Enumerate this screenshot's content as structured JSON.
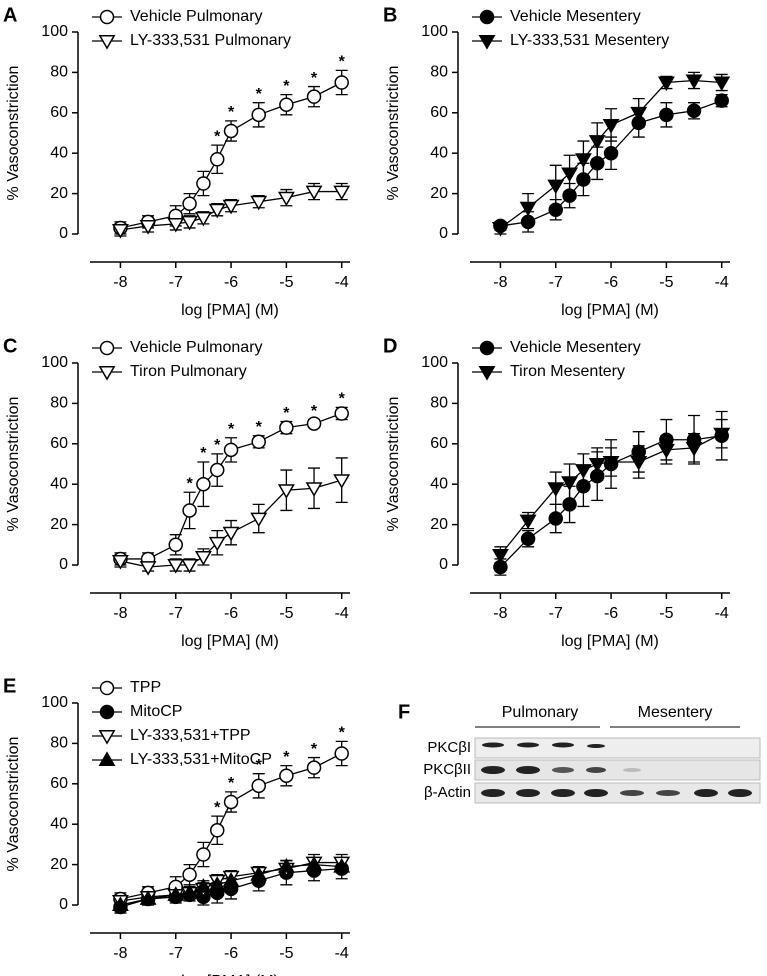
{
  "chart_data": [
    {
      "type": "line",
      "panel": "A",
      "xlabel": "log [PMA] (M)",
      "ylabel": "% Vasoconstriction",
      "x": [
        -8,
        -7.5,
        -7,
        -6.75,
        -6.5,
        -6.25,
        -6,
        -5.5,
        -5,
        -4.5,
        -4
      ],
      "xlim": [
        -8.55,
        -3.85
      ],
      "xticks": [
        -8,
        -7,
        -6,
        -5,
        -4
      ],
      "ylim": [
        0,
        100
      ],
      "yticks": [
        0,
        20,
        40,
        60,
        80,
        100
      ],
      "series": [
        {
          "name": "Vehicle Pulmonary",
          "color": "#000000",
          "marker": "circle",
          "filled": false,
          "values": [
            3,
            6,
            9,
            15,
            25,
            37,
            51,
            59,
            64,
            68,
            75
          ],
          "errors": [
            3,
            3,
            5,
            5,
            6,
            7,
            5,
            6,
            5,
            5,
            6
          ]
        },
        {
          "name": "LY-333,531 Pulmonary",
          "color": "#000000",
          "marker": "triangle-down",
          "filled": false,
          "values": [
            2,
            4,
            5,
            6,
            8,
            12,
            14,
            16,
            18,
            21,
            21
          ],
          "errors": [
            3,
            3,
            3,
            3,
            3,
            3,
            3,
            3,
            4,
            4,
            4
          ]
        }
      ],
      "significance_x": [
        -6.25,
        -6,
        -5.5,
        -5,
        -4.5,
        -4
      ],
      "significance_label": "*"
    },
    {
      "type": "line",
      "panel": "B",
      "xlabel": "log [PMA] (M)",
      "ylabel": "% Vasoconstriction",
      "x": [
        -8,
        -7.5,
        -7,
        -6.75,
        -6.5,
        -6.25,
        -6,
        -5.5,
        -5,
        -4.5,
        -4
      ],
      "xlim": [
        -8.55,
        -3.85
      ],
      "xticks": [
        -8,
        -7,
        -6,
        -5,
        -4
      ],
      "ylim": [
        0,
        100
      ],
      "yticks": [
        0,
        20,
        40,
        60,
        80,
        100
      ],
      "series": [
        {
          "name": "Vehicle Mesentery",
          "color": "#000000",
          "marker": "circle",
          "filled": true,
          "values": [
            4,
            6,
            12,
            19,
            27,
            35,
            40,
            55,
            59,
            61,
            66
          ],
          "errors": [
            2,
            5,
            5,
            6,
            8,
            8,
            8,
            7,
            6,
            4,
            3
          ]
        },
        {
          "name": "LY-333,531 Mesentery",
          "color": "#000000",
          "marker": "triangle-down",
          "filled": true,
          "values": [
            3,
            13,
            24,
            30,
            37,
            46,
            54,
            60,
            75,
            76,
            75
          ],
          "errors": [
            3,
            7,
            10,
            9,
            9,
            9,
            8,
            7,
            3,
            4,
            4
          ]
        }
      ]
    },
    {
      "type": "line",
      "panel": "C",
      "xlabel": "log [PMA] (M)",
      "ylabel": "% Vasoconstriction",
      "x": [
        -8,
        -7.5,
        -7,
        -6.75,
        -6.5,
        -6.25,
        -6,
        -5.5,
        -5,
        -4.5,
        -4
      ],
      "xlim": [
        -8.55,
        -3.85
      ],
      "xticks": [
        -8,
        -7,
        -6,
        -5,
        -4
      ],
      "ylim": [
        0,
        100
      ],
      "yticks": [
        0,
        20,
        40,
        60,
        80,
        100
      ],
      "series": [
        {
          "name": "Vehicle Pulmonary",
          "color": "#000000",
          "marker": "circle",
          "filled": false,
          "values": [
            3,
            3,
            10,
            27,
            40,
            47,
            57,
            61,
            68,
            70,
            75
          ],
          "errors": [
            3,
            3,
            5,
            9,
            11,
            8,
            6,
            3,
            3,
            2,
            3
          ]
        },
        {
          "name": "Tiron Pulmonary",
          "color": "#000000",
          "marker": "triangle-down",
          "filled": false,
          "values": [
            2,
            -1,
            0,
            0,
            4,
            11,
            16,
            23,
            37,
            38,
            42
          ],
          "errors": [
            3,
            2,
            3,
            3,
            4,
            6,
            6,
            7,
            10,
            10,
            11
          ]
        }
      ],
      "significance_x": [
        -6.75,
        -6.5,
        -6.25,
        -6,
        -5.5,
        -5,
        -4.5,
        -4
      ],
      "significance_label": "*"
    },
    {
      "type": "line",
      "panel": "D",
      "xlabel": "log [PMA] (M)",
      "ylabel": "% Vasoconstriction",
      "x": [
        -8,
        -7.5,
        -7,
        -6.75,
        -6.5,
        -6.25,
        -6,
        -5.5,
        -5,
        -4.5,
        -4
      ],
      "xlim": [
        -8.55,
        -3.85
      ],
      "xticks": [
        -8,
        -7,
        -6,
        -5,
        -4
      ],
      "ylim": [
        0,
        100
      ],
      "yticks": [
        0,
        20,
        40,
        60,
        80,
        100
      ],
      "series": [
        {
          "name": "Vehicle Mesentery",
          "color": "#000000",
          "marker": "circle",
          "filled": true,
          "values": [
            -1,
            13,
            23,
            30,
            39,
            44,
            50,
            56,
            62,
            62,
            64
          ],
          "errors": [
            4,
            4,
            7,
            9,
            10,
            12,
            12,
            10,
            10,
            12,
            12
          ]
        },
        {
          "name": "Tiron Mesentery",
          "color": "#000000",
          "marker": "triangle-down",
          "filled": true,
          "values": [
            5,
            22,
            38,
            41,
            47,
            50,
            51,
            51,
            57,
            58,
            65
          ],
          "errors": [
            4,
            4,
            8,
            9,
            8,
            8,
            7,
            8,
            7,
            7,
            7
          ]
        }
      ]
    },
    {
      "type": "line",
      "panel": "E",
      "xlabel": "log [PMA] (M)",
      "ylabel": "% Vasoconstriction",
      "x": [
        -8,
        -7.5,
        -7,
        -6.75,
        -6.5,
        -6.25,
        -6,
        -5.5,
        -5,
        -4.5,
        -4
      ],
      "xlim": [
        -8.55,
        -3.85
      ],
      "xticks": [
        -8,
        -7,
        -6,
        -5,
        -4
      ],
      "ylim": [
        0,
        100
      ],
      "yticks": [
        0,
        20,
        40,
        60,
        80,
        100
      ],
      "series": [
        {
          "name": "TPP",
          "color": "#000000",
          "marker": "circle",
          "filled": false,
          "values": [
            3,
            6,
            9,
            15,
            25,
            37,
            51,
            59,
            64,
            68,
            75
          ],
          "errors": [
            3,
            3,
            5,
            5,
            6,
            7,
            5,
            6,
            5,
            5,
            6
          ]
        },
        {
          "name": "MitoCP",
          "color": "#000000",
          "marker": "circle",
          "filled": true,
          "values": [
            -1,
            3,
            4,
            5,
            4,
            6,
            8,
            12,
            16,
            17,
            18
          ],
          "errors": [
            3,
            3,
            3,
            3,
            4,
            5,
            5,
            5,
            6,
            5,
            5
          ]
        },
        {
          "name": "LY-333,531+TPP",
          "color": "#000000",
          "marker": "triangle-down",
          "filled": false,
          "values": [
            2,
            4,
            5,
            6,
            8,
            12,
            14,
            16,
            18,
            21,
            21
          ],
          "errors": [
            3,
            3,
            3,
            3,
            3,
            3,
            3,
            3,
            4,
            4,
            4
          ]
        },
        {
          "name": "LY-333,531+MitoCP",
          "color": "#000000",
          "marker": "triangle-up",
          "filled": true,
          "values": [
            0,
            3,
            5,
            6,
            9,
            10,
            12,
            15,
            19,
            20,
            19
          ],
          "errors": [
            3,
            3,
            3,
            3,
            3,
            3,
            3,
            3,
            3,
            3,
            3
          ]
        }
      ],
      "significance_x": [
        -6.25,
        -6,
        -5.5,
        -5,
        -4.5,
        -4
      ],
      "significance_label": "*"
    }
  ],
  "blot": {
    "panel": "F",
    "groups": [
      "Pulmonary",
      "Mesentery"
    ],
    "rows": [
      "PKCβI",
      "PKCβII",
      "β-Actin"
    ]
  }
}
